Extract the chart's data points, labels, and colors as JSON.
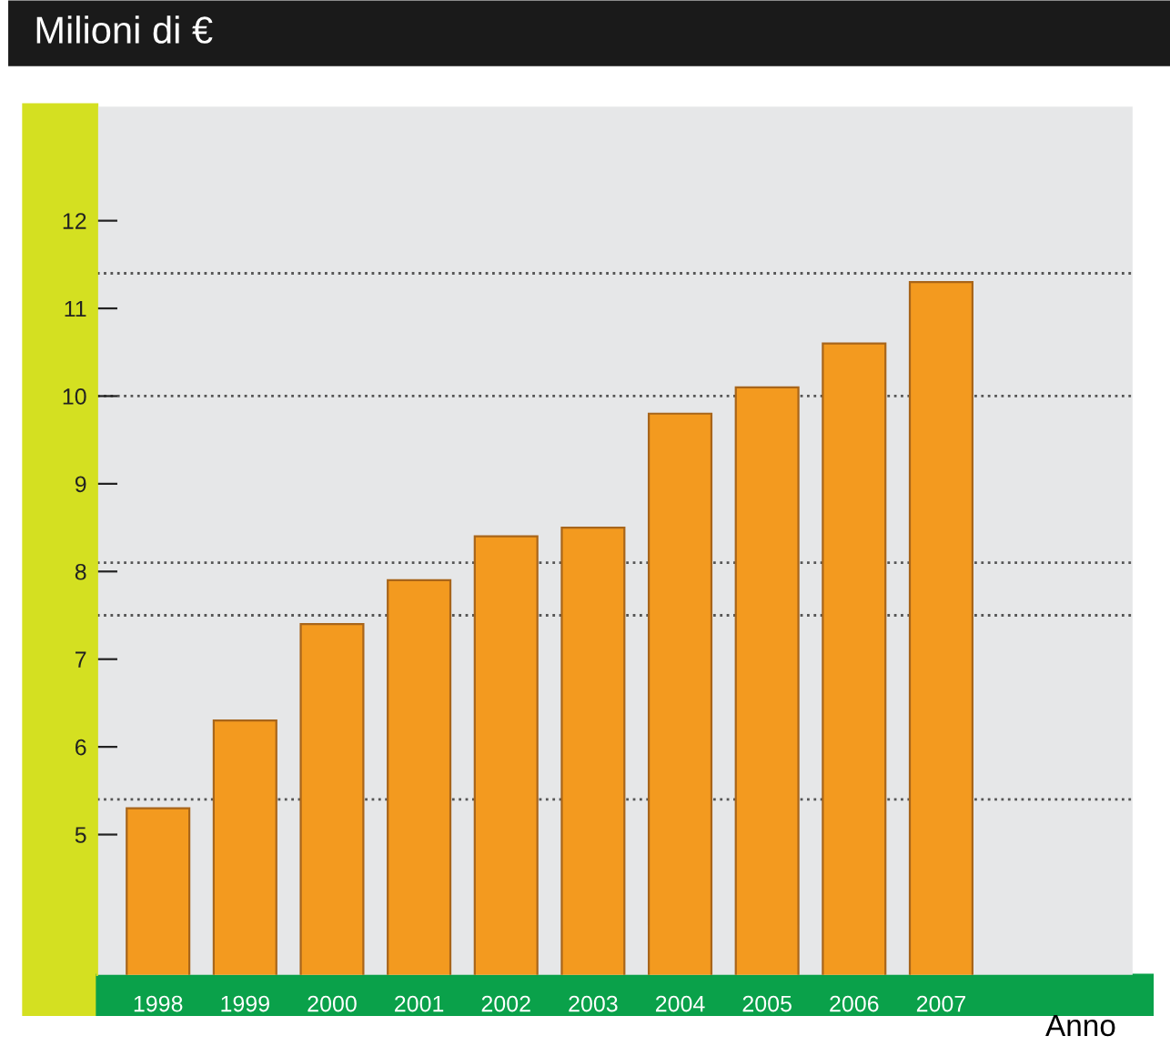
{
  "chart_data": {
    "type": "bar",
    "title": "Milioni di €",
    "xlabel": "Anno",
    "categories": [
      "1998",
      "1999",
      "2000",
      "2001",
      "2002",
      "2003",
      "2004",
      "2005",
      "2006",
      "2007"
    ],
    "values": [
      5.3,
      6.3,
      7.4,
      7.9,
      8.4,
      8.5,
      9.8,
      10.1,
      10.6,
      11.3
    ],
    "color": "#f39a1f",
    "ylim": [
      3.4,
      13.3
    ],
    "yticks": [
      5,
      6,
      7,
      8,
      9,
      10,
      11,
      12
    ],
    "ref_lines": [
      {
        "axis": "y",
        "value": 5.4,
        "line_style": "dotted",
        "color": "#555555"
      },
      {
        "axis": "y",
        "value": 7.5,
        "line_style": "dotted",
        "color": "#555555"
      },
      {
        "axis": "y",
        "value": 8.1,
        "line_style": "dotted",
        "color": "#555555"
      },
      {
        "axis": "y",
        "value": 10.0,
        "line_style": "dotted",
        "color": "#555555"
      },
      {
        "axis": "y",
        "value": 11.4,
        "line_style": "dotted",
        "color": "#555555"
      }
    ],
    "grid": false,
    "legend": false
  }
}
